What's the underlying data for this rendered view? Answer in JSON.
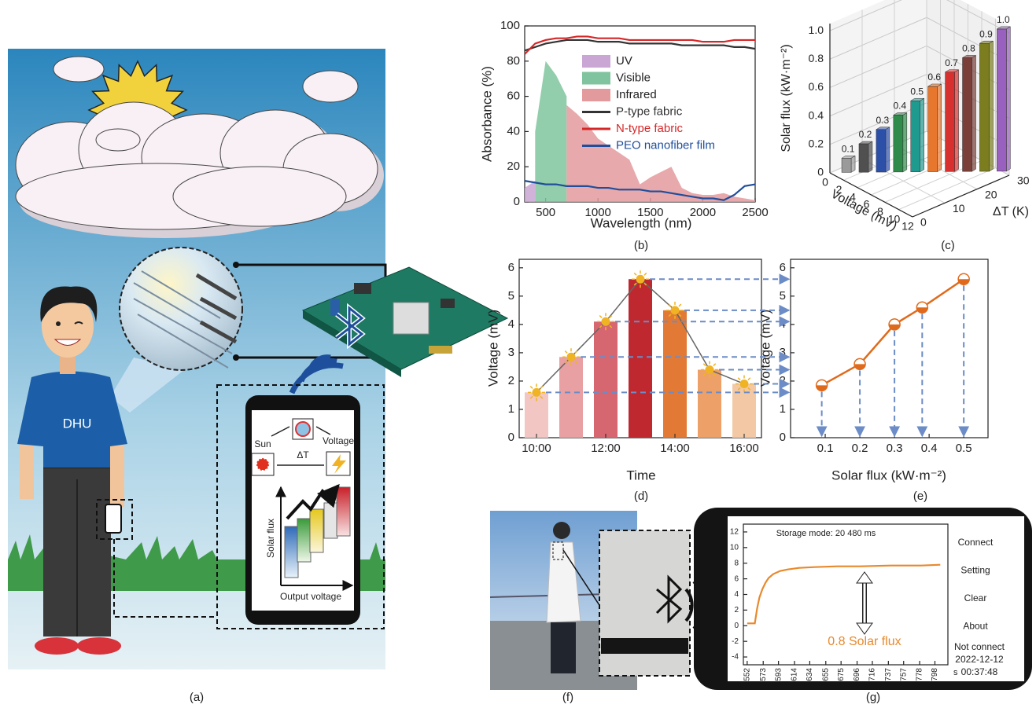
{
  "illustrations": {
    "a": {
      "caption": "(a)",
      "shirt": "DHU",
      "app": {
        "sun": "Sun",
        "voltage": "Voltage",
        "delta_t": "ΔT",
        "y_axis": "Solar flux",
        "x_axis": "Output voltage"
      }
    },
    "f": {
      "caption": "(f)"
    }
  },
  "chart_data": [
    {
      "type": "line",
      "caption": "(b)",
      "x_label": "Wavelength (nm)",
      "y_label": "Absorbance (%)",
      "x": [
        300,
        400,
        500,
        600,
        700,
        800,
        900,
        1000,
        1100,
        1200,
        1300,
        1400,
        1500,
        1600,
        1700,
        1800,
        1900,
        2000,
        2100,
        2200,
        2300,
        2400,
        2500
      ],
      "xlim": [
        300,
        2500
      ],
      "ylim": [
        0,
        100
      ],
      "xticks": [
        500,
        1000,
        1500,
        2000,
        2500
      ],
      "yticks": [
        0,
        20,
        40,
        60,
        80,
        100
      ],
      "legend": "upper right",
      "series": [
        {
          "name": "UV",
          "color": "#c9a6d4",
          "style": "area",
          "values": [
            8,
            12,
            null,
            null,
            null,
            null,
            null,
            null,
            null,
            null,
            null,
            null,
            null,
            null,
            null,
            null,
            null,
            null,
            null,
            null,
            null,
            null,
            null
          ]
        },
        {
          "name": "Visible",
          "color": "#7fc49e",
          "style": "area",
          "values": [
            null,
            40,
            80,
            72,
            60,
            null,
            null,
            null,
            null,
            null,
            null,
            null,
            null,
            null,
            null,
            null,
            null,
            null,
            null,
            null,
            null,
            null,
            null
          ]
        },
        {
          "name": "Infrared",
          "color": "#e39a9c",
          "style": "area",
          "values": [
            null,
            null,
            null,
            null,
            55,
            50,
            44,
            36,
            32,
            28,
            24,
            10,
            14,
            17,
            20,
            8,
            5,
            4,
            4,
            5,
            3,
            2,
            1
          ]
        },
        {
          "name": "P-type fabric",
          "color": "#333333",
          "values": [
            86,
            88,
            90,
            91,
            92,
            92,
            92,
            91,
            91,
            91,
            90,
            90,
            90,
            90,
            90,
            89,
            89,
            89,
            89,
            89,
            88,
            88,
            87
          ]
        },
        {
          "name": "N-type fabric",
          "color": "#d62728",
          "values": [
            84,
            90,
            92,
            93,
            93,
            94,
            94,
            93,
            93,
            93,
            92,
            92,
            92,
            92,
            92,
            92,
            92,
            91,
            91,
            91,
            92,
            92,
            92
          ]
        },
        {
          "name": "PEO nanofiber film",
          "color": "#1f4e9c",
          "values": [
            12,
            11,
            10,
            10,
            9,
            9,
            9,
            8,
            8,
            7,
            7,
            7,
            6,
            6,
            5,
            4,
            3,
            2,
            2,
            1,
            4,
            9,
            10
          ]
        }
      ]
    },
    {
      "type": "bar3d",
      "caption": "(c)",
      "x_label": "Voltage (mV)",
      "z_label": "ΔT (K)",
      "y_label": "Solar flux (kW·m⁻²)",
      "values": [
        0.1,
        0.2,
        0.3,
        0.4,
        0.5,
        0.6,
        0.7,
        0.8,
        0.9,
        1.0
      ],
      "value_labels": [
        "0.1",
        "0.2",
        "0.3",
        "0.4",
        "0.5",
        "0.6",
        "0.7",
        "0.8",
        "0.9",
        "1.0"
      ],
      "x": [
        1.0,
        2.1,
        3.2,
        4.3,
        5.4,
        6.5,
        7.6,
        8.7,
        9.8,
        10.9
      ],
      "z": [
        3,
        6,
        9,
        12,
        15,
        18,
        21,
        24,
        27,
        30
      ],
      "colors": [
        "#9a9a9a",
        "#505050",
        "#2c4fa8",
        "#2e8b4a",
        "#1f9a8f",
        "#e8772e",
        "#d8302f",
        "#7a3f38",
        "#7b7d1e",
        "#9a60c0"
      ],
      "xlim": [
        0,
        12
      ],
      "zlim": [
        0,
        30
      ],
      "ylim": [
        0,
        1.05
      ],
      "xticks": [
        0,
        2,
        4,
        6,
        8,
        10,
        12
      ],
      "zticks": [
        0,
        10,
        20,
        30
      ],
      "yticks": [
        0,
        0.2,
        0.4,
        0.6,
        0.8,
        {
          "value": 1,
          "label": "1.0"
        }
      ]
    },
    {
      "type": "bar",
      "caption": "(d)",
      "x_label": "Time",
      "y_label": "Voltage (mV)",
      "categories": [
        "10:00",
        null,
        "12:00",
        null,
        "14:00",
        null,
        "16:00"
      ],
      "values": [
        1.6,
        2.85,
        4.1,
        5.6,
        4.5,
        2.4,
        1.9
      ],
      "colors": [
        "#f2c6c3",
        "#e8a0a3",
        "#d6666f",
        "#c0282f",
        "#e27a35",
        "#eda168",
        "#f2c8a5"
      ],
      "line_color": "#666666",
      "ylim": [
        0,
        6.3
      ],
      "yticks": [
        0,
        1,
        2,
        3,
        4,
        5,
        6
      ]
    },
    {
      "type": "line",
      "caption": "(e)",
      "x_label": "Solar flux (kW·m⁻²)",
      "y_label": "Voltage (mV)",
      "x": [
        0.09,
        0.2,
        0.3,
        0.38,
        0.5
      ],
      "markers": true,
      "series": [
        {
          "color": "#e06a1b",
          "values": [
            1.85,
            2.6,
            4.0,
            4.6,
            5.6
          ]
        }
      ],
      "xlim": [
        0,
        0.57
      ],
      "ylim": [
        0,
        6.3
      ],
      "xticks": [
        0.1,
        0.2,
        0.3,
        0.4,
        0.5
      ],
      "yticks": [
        0,
        1,
        2,
        3,
        4,
        5,
        6
      ]
    },
    {
      "type": "line",
      "caption": "(g)",
      "title": "Storage mode: 20 480 ms",
      "annotation": "0.8 Solar flux",
      "x_unit": "s",
      "menu": [
        "Connect",
        "Setting",
        "Clear",
        "About"
      ],
      "status": [
        "Not connect",
        "2022-12-12",
        "00:37:48"
      ],
      "x": [
        552,
        558,
        562,
        565,
        568,
        572,
        576,
        580,
        586,
        595,
        605,
        620,
        640,
        670,
        700,
        740,
        780,
        805
      ],
      "series": [
        {
          "color": "#e8892c",
          "values": [
            0.3,
            0.3,
            0.3,
            2.2,
            3.6,
            4.7,
            5.5,
            6.1,
            6.6,
            7.0,
            7.2,
            7.4,
            7.5,
            7.6,
            7.6,
            7.7,
            7.7,
            7.8
          ]
        }
      ],
      "xlim": [
        547,
        815
      ],
      "ylim": [
        -5,
        13
      ],
      "xticks": [
        552,
        573,
        593,
        614,
        634,
        655,
        675,
        696,
        716,
        737,
        757,
        778,
        798
      ],
      "yticks": [
        -4,
        -2,
        0,
        2,
        4,
        6,
        8,
        10,
        12
      ]
    }
  ]
}
